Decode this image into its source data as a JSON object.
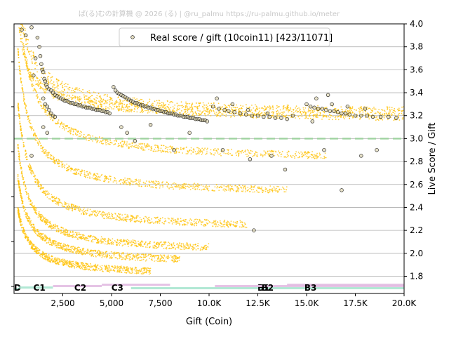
{
  "credit": "ぱ(る)むの計算機 @ 2026 (る) | @ru_palmu  https://ru-palmu.github.io/meter",
  "chart_data": {
    "type": "scatter",
    "title": "",
    "xlabel": "Gift (Coin)",
    "ylabel": "Live Score / Gift",
    "xlim": [
      0,
      20000
    ],
    "ylim": [
      1.65,
      4.0
    ],
    "x_ticks": [
      {
        "value": 2500,
        "label": "2,500"
      },
      {
        "value": 5000,
        "label": "5,000"
      },
      {
        "value": 7500,
        "label": "7,500"
      },
      {
        "value": 10000,
        "label": "10.0K"
      },
      {
        "value": 12500,
        "label": "12.5K"
      },
      {
        "value": 15000,
        "label": "15.0K"
      },
      {
        "value": 17500,
        "label": "17.5K"
      },
      {
        "value": 20000,
        "label": "20.0K"
      }
    ],
    "y_ticks": [
      {
        "value": 1.8,
        "label": "1.8"
      },
      {
        "value": 2.0,
        "label": "2.0"
      },
      {
        "value": 2.2,
        "label": "2.2"
      },
      {
        "value": 2.4,
        "label": "2.4"
      },
      {
        "value": 2.6,
        "label": "2.6"
      },
      {
        "value": 2.8,
        "label": "2.8"
      },
      {
        "value": 3.0,
        "label": "3.0"
      },
      {
        "value": 3.2,
        "label": "3.2"
      },
      {
        "value": 3.4,
        "label": "3.4"
      },
      {
        "value": 3.6,
        "label": "3.6"
      },
      {
        "value": 3.8,
        "label": "3.8"
      },
      {
        "value": 4.0,
        "label": "4.0"
      }
    ],
    "grid": "horizontal",
    "reference_line": {
      "y": 3.0,
      "color": "#9fd3a0"
    },
    "legend": {
      "placement": "top-center",
      "label": "Real score / gift (10coin11) [423/11071]"
    },
    "colors": {
      "background_points": "#ffc107",
      "real_points_fill": "#d4c89a",
      "real_points_edge": "#000000"
    },
    "real_points": [
      [
        400,
        3.95
      ],
      [
        600,
        3.9
      ],
      [
        900,
        3.97
      ],
      [
        1200,
        3.88
      ],
      [
        1300,
        3.8
      ],
      [
        1350,
        3.72
      ],
      [
        1400,
        3.65
      ],
      [
        1450,
        3.6
      ],
      [
        1500,
        3.58
      ],
      [
        1550,
        3.52
      ],
      [
        1600,
        3.5
      ],
      [
        1650,
        3.47
      ],
      [
        1700,
        3.45
      ],
      [
        1800,
        3.43
      ],
      [
        1900,
        3.42
      ],
      [
        2000,
        3.4
      ],
      [
        2100,
        3.38
      ],
      [
        2200,
        3.37
      ],
      [
        2300,
        3.36
      ],
      [
        2400,
        3.35
      ],
      [
        2500,
        3.34
      ],
      [
        2600,
        3.33
      ],
      [
        2700,
        3.33
      ],
      [
        2800,
        3.32
      ],
      [
        2900,
        3.31
      ],
      [
        3000,
        3.31
      ],
      [
        3100,
        3.3
      ],
      [
        3200,
        3.3
      ],
      [
        3300,
        3.29
      ],
      [
        3400,
        3.29
      ],
      [
        3500,
        3.28
      ],
      [
        3600,
        3.28
      ],
      [
        3700,
        3.27
      ],
      [
        3800,
        3.27
      ],
      [
        3900,
        3.27
      ],
      [
        4000,
        3.26
      ],
      [
        4100,
        3.26
      ],
      [
        4200,
        3.25
      ],
      [
        4300,
        3.25
      ],
      [
        4400,
        3.25
      ],
      [
        4500,
        3.24
      ],
      [
        4600,
        3.24
      ],
      [
        4700,
        3.23
      ],
      [
        4800,
        3.23
      ],
      [
        4900,
        3.22
      ],
      [
        1500,
        3.35
      ],
      [
        1600,
        3.3
      ],
      [
        1700,
        3.28
      ],
      [
        1800,
        3.25
      ],
      [
        1900,
        3.22
      ],
      [
        2000,
        3.2
      ],
      [
        2100,
        3.19
      ],
      [
        1500,
        3.1
      ],
      [
        1700,
        3.05
      ],
      [
        900,
        2.85
      ],
      [
        1000,
        3.55
      ],
      [
        1100,
        3.7
      ],
      [
        5100,
        3.45
      ],
      [
        5200,
        3.42
      ],
      [
        5300,
        3.4
      ],
      [
        5400,
        3.39
      ],
      [
        5500,
        3.38
      ],
      [
        5600,
        3.37
      ],
      [
        5700,
        3.36
      ],
      [
        5800,
        3.35
      ],
      [
        5900,
        3.34
      ],
      [
        6000,
        3.33
      ],
      [
        6100,
        3.32
      ],
      [
        6200,
        3.31
      ],
      [
        6300,
        3.31
      ],
      [
        6400,
        3.3
      ],
      [
        6500,
        3.29
      ],
      [
        6600,
        3.29
      ],
      [
        6700,
        3.28
      ],
      [
        6800,
        3.28
      ],
      [
        6900,
        3.27
      ],
      [
        7000,
        3.27
      ],
      [
        7100,
        3.26
      ],
      [
        7200,
        3.26
      ],
      [
        7300,
        3.25
      ],
      [
        7400,
        3.25
      ],
      [
        7500,
        3.24
      ],
      [
        7600,
        3.24
      ],
      [
        7700,
        3.23
      ],
      [
        7800,
        3.23
      ],
      [
        7900,
        3.22
      ],
      [
        8000,
        3.22
      ],
      [
        8100,
        3.22
      ],
      [
        8200,
        3.21
      ],
      [
        8300,
        3.21
      ],
      [
        8400,
        3.2
      ],
      [
        8500,
        3.2
      ],
      [
        8600,
        3.2
      ],
      [
        8700,
        3.19
      ],
      [
        8800,
        3.19
      ],
      [
        8900,
        3.19
      ],
      [
        9000,
        3.18
      ],
      [
        9100,
        3.18
      ],
      [
        9200,
        3.18
      ],
      [
        9300,
        3.17
      ],
      [
        9400,
        3.17
      ],
      [
        9500,
        3.17
      ],
      [
        9600,
        3.16
      ],
      [
        9700,
        3.16
      ],
      [
        9800,
        3.16
      ],
      [
        9900,
        3.15
      ],
      [
        5500,
        3.1
      ],
      [
        5800,
        3.05
      ],
      [
        6200,
        2.98
      ],
      [
        7000,
        3.12
      ],
      [
        8200,
        2.9
      ],
      [
        9000,
        3.05
      ],
      [
        10200,
        3.28
      ],
      [
        10500,
        3.26
      ],
      [
        10800,
        3.25
      ],
      [
        11000,
        3.24
      ],
      [
        11300,
        3.23
      ],
      [
        11600,
        3.22
      ],
      [
        11900,
        3.21
      ],
      [
        12200,
        3.2
      ],
      [
        12500,
        3.2
      ],
      [
        12800,
        3.19
      ],
      [
        13100,
        3.19
      ],
      [
        13400,
        3.18
      ],
      [
        13700,
        3.18
      ],
      [
        14000,
        3.17
      ],
      [
        10400,
        3.35
      ],
      [
        11200,
        3.3
      ],
      [
        12000,
        3.25
      ],
      [
        13000,
        3.22
      ],
      [
        14300,
        3.2
      ],
      [
        10700,
        2.9
      ],
      [
        12100,
        2.82
      ],
      [
        13200,
        2.85
      ],
      [
        13900,
        2.73
      ],
      [
        12300,
        2.2
      ],
      [
        15000,
        3.3
      ],
      [
        15200,
        3.28
      ],
      [
        15400,
        3.27
      ],
      [
        15600,
        3.26
      ],
      [
        15800,
        3.26
      ],
      [
        16000,
        3.25
      ],
      [
        16200,
        3.24
      ],
      [
        16400,
        3.24
      ],
      [
        16600,
        3.23
      ],
      [
        16800,
        3.22
      ],
      [
        17000,
        3.22
      ],
      [
        17200,
        3.21
      ],
      [
        17500,
        3.2
      ],
      [
        17800,
        3.2
      ],
      [
        18100,
        3.2
      ],
      [
        18400,
        3.19
      ],
      [
        18800,
        3.19
      ],
      [
        19200,
        3.19
      ],
      [
        19600,
        3.18
      ],
      [
        15500,
        3.35
      ],
      [
        16300,
        3.3
      ],
      [
        17100,
        3.28
      ],
      [
        18000,
        3.26
      ],
      [
        15900,
        2.9
      ],
      [
        16800,
        2.55
      ],
      [
        17800,
        2.85
      ],
      [
        18600,
        2.9
      ],
      [
        16100,
        3.38
      ],
      [
        15300,
        3.15
      ]
    ],
    "background_curves": [
      {
        "a": 2950,
        "x_start": 200,
        "x_end": 20000
      },
      {
        "a": 2550,
        "x_start": 200,
        "x_end": 16000
      },
      {
        "a": 2200,
        "x_start": 200,
        "x_end": 14000
      },
      {
        "a": 1900,
        "x_start": 200,
        "x_end": 12000
      },
      {
        "a": 1600,
        "x_start": 200,
        "x_end": 10000
      },
      {
        "a": 1300,
        "x_start": 200,
        "x_end": 8500
      },
      {
        "a": 1000,
        "x_start": 200,
        "x_end": 7000
      }
    ],
    "rank_bands": [
      {
        "label": "D",
        "x_start": 0,
        "x_end": 250,
        "color": "#a8e6cf",
        "label_x": 0
      },
      {
        "label": "C1",
        "x_start": 250,
        "x_end": 2000,
        "color": "#a8e6cf",
        "label_x": 1300
      },
      {
        "label": "C2",
        "x_start": 2000,
        "x_end": 4500,
        "color": "#e2bde2",
        "label_x": 3400
      },
      {
        "label": "C3",
        "x_start": 4500,
        "x_end": 8000,
        "color": "#e2bde2",
        "label_x": 5300
      },
      {
        "label": "B1",
        "x_start": 6000,
        "x_end": 20000,
        "color": "#a8e6cf",
        "label_x": 12800
      },
      {
        "label": "B2",
        "x_start": 10300,
        "x_end": 20000,
        "color": "#e2bde2",
        "label_x": 13000
      },
      {
        "label": "B3",
        "x_start": 14000,
        "x_end": 20000,
        "color": "#e2bde2",
        "label_x": 15200
      }
    ]
  }
}
